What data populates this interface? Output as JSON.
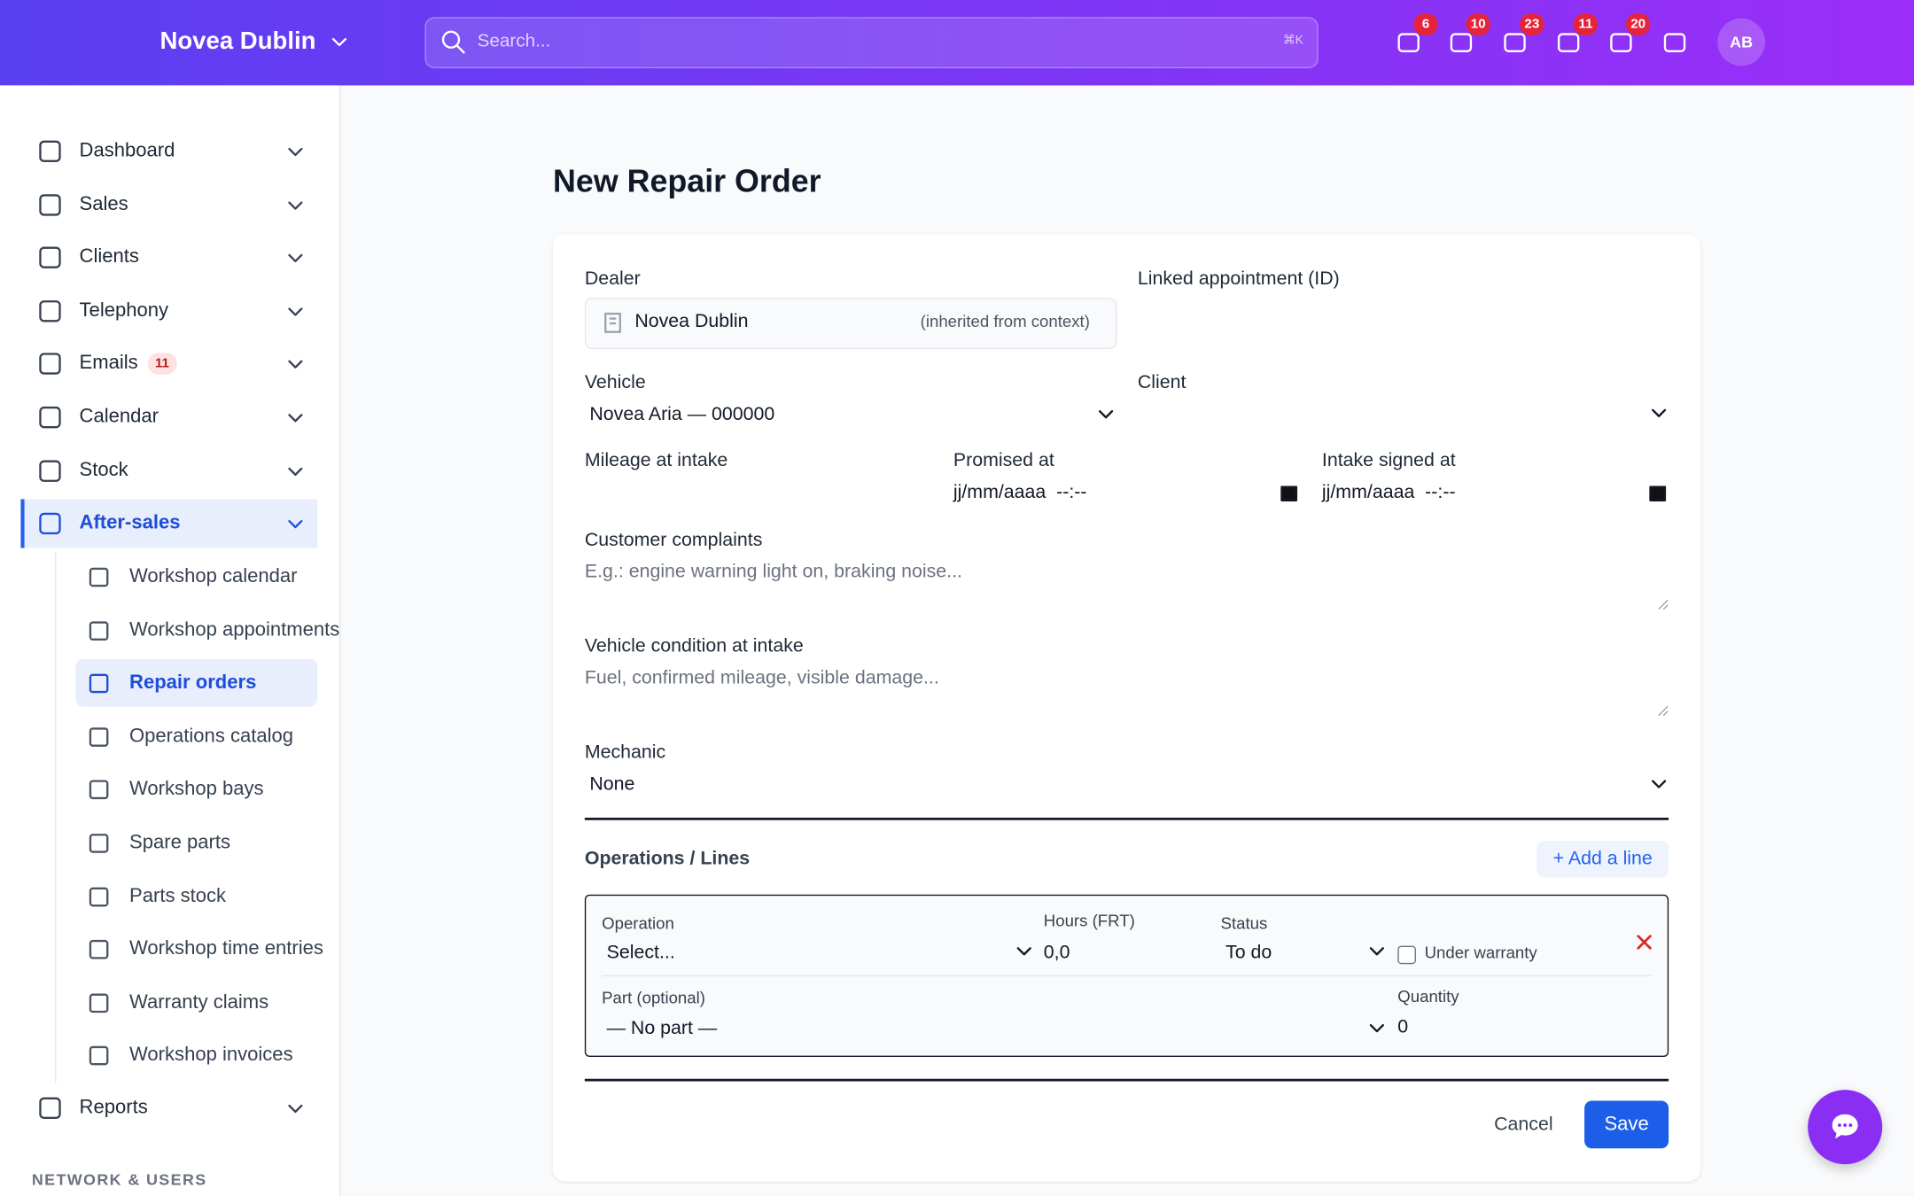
{
  "header": {
    "dealer": "Novea Dublin",
    "search_placeholder": "Search...",
    "shortcut": "⌘K",
    "badges": [
      "6",
      "10",
      "23",
      "11",
      "20"
    ],
    "avatar": "AB"
  },
  "sidebar": {
    "items": [
      {
        "label": "Dashboard"
      },
      {
        "label": "Sales"
      },
      {
        "label": "Clients"
      },
      {
        "label": "Telephony"
      },
      {
        "label": "Emails",
        "badge": "11"
      },
      {
        "label": "Calendar"
      },
      {
        "label": "Stock"
      },
      {
        "label": "After-sales"
      },
      {
        "label": "Reports"
      }
    ],
    "sub_items": [
      "Workshop calendar",
      "Workshop appointments",
      "Repair orders",
      "Operations catalog",
      "Workshop bays",
      "Spare parts",
      "Parts stock",
      "Workshop time entries",
      "Warranty claims",
      "Workshop invoices"
    ],
    "section": "NETWORK & USERS"
  },
  "form": {
    "title": "New Repair Order",
    "dealer_label": "Dealer",
    "dealer_value": "Novea Dublin",
    "dealer_note": "(inherited from context)",
    "appointment_label": "Linked appointment (ID)",
    "vehicle_label": "Vehicle",
    "vehicle_value": "Novea Aria — 000000",
    "client_label": "Client",
    "mileage_label": "Mileage at intake",
    "promised_label": "Promised at",
    "promised_value": "jj/mm/aaaa  --:--",
    "intake_label": "Intake signed at",
    "intake_value": "jj/mm/aaaa  --:--",
    "complaints_label": "Customer complaints",
    "complaints_placeholder": "E.g.: engine warning light on, braking noise...",
    "condition_label": "Vehicle condition at intake",
    "condition_placeholder": "Fuel, confirmed mileage, visible damage...",
    "mechanic_label": "Mechanic",
    "mechanic_value": "None",
    "lines_title": "Operations / Lines",
    "add_line": "+ Add a line",
    "line": {
      "operation_label": "Operation",
      "operation_value": "Select...",
      "hours_label": "Hours (FRT)",
      "hours_value": "0,0",
      "status_label": "Status",
      "status_value": "To do",
      "warranty_label": "Under warranty",
      "part_label": "Part (optional)",
      "part_value": "— No part —",
      "quantity_label": "Quantity",
      "quantity_value": "0"
    },
    "cancel": "Cancel",
    "save": "Save"
  }
}
